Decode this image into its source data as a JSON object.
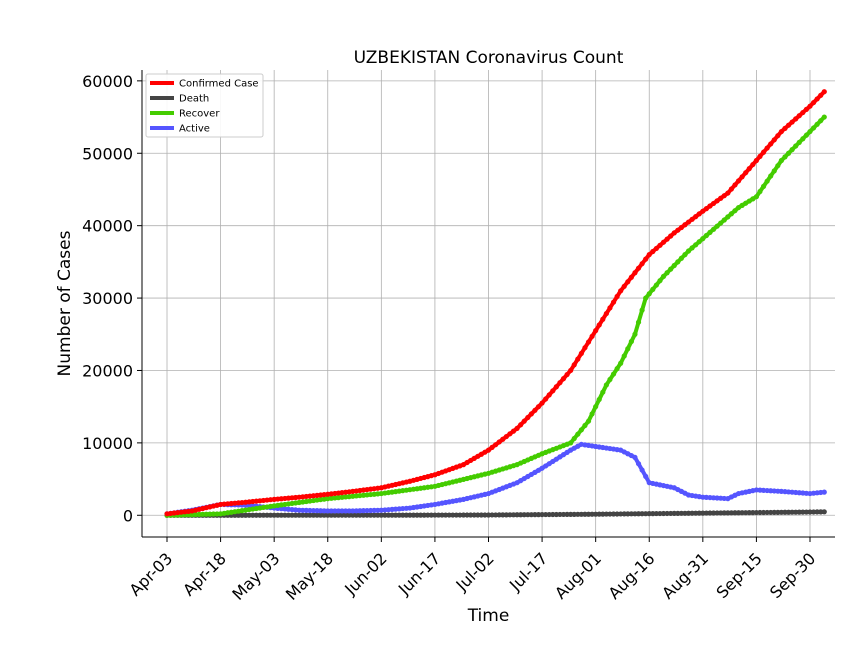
{
  "chart_data": {
    "type": "line",
    "title": "UZBEKISTAN Coronavirus Count",
    "xlabel": "Time",
    "ylabel": "Number of Cases",
    "ylim": [
      -3000,
      61500
    ],
    "yticks": [
      0,
      10000,
      20000,
      30000,
      40000,
      50000,
      60000
    ],
    "ytick_labels": [
      "0",
      "10000",
      "20000",
      "30000",
      "40000",
      "50000",
      "60000"
    ],
    "xlim_dates": [
      "2020-03-27",
      "2020-10-07"
    ],
    "xticks": [
      "2020-04-03",
      "2020-04-18",
      "2020-05-03",
      "2020-05-18",
      "2020-06-02",
      "2020-06-17",
      "2020-07-02",
      "2020-07-17",
      "2020-08-01",
      "2020-08-16",
      "2020-08-31",
      "2020-09-15",
      "2020-09-30"
    ],
    "xtick_labels": [
      "Apr-03",
      "Apr-18",
      "May-03",
      "May-18",
      "Jun-02",
      "Jun-17",
      "Jul-02",
      "Jul-17",
      "Aug-01",
      "Aug-16",
      "Aug-31",
      "Sep-15",
      "Sep-30"
    ],
    "grid": true,
    "legend_position": "top-left",
    "series": [
      {
        "name": "Confirmed Case",
        "color": "#ff0000",
        "points": [
          [
            "2020-04-03",
            200
          ],
          [
            "2020-04-10",
            600
          ],
          [
            "2020-04-18",
            1500
          ],
          [
            "2020-04-25",
            1800
          ],
          [
            "2020-05-03",
            2200
          ],
          [
            "2020-05-10",
            2500
          ],
          [
            "2020-05-18",
            2900
          ],
          [
            "2020-05-25",
            3300
          ],
          [
            "2020-06-02",
            3800
          ],
          [
            "2020-06-10",
            4700
          ],
          [
            "2020-06-17",
            5600
          ],
          [
            "2020-06-25",
            7000
          ],
          [
            "2020-07-02",
            9000
          ],
          [
            "2020-07-10",
            12000
          ],
          [
            "2020-07-17",
            15500
          ],
          [
            "2020-07-25",
            20000
          ],
          [
            "2020-08-01",
            25500
          ],
          [
            "2020-08-08",
            31000
          ],
          [
            "2020-08-16",
            36000
          ],
          [
            "2020-08-23",
            39000
          ],
          [
            "2020-08-31",
            42000
          ],
          [
            "2020-09-07",
            44500
          ],
          [
            "2020-09-15",
            49000
          ],
          [
            "2020-09-22",
            53000
          ],
          [
            "2020-09-30",
            56500
          ],
          [
            "2020-10-04",
            58500
          ]
        ]
      },
      {
        "name": "Death",
        "color": "#444444",
        "points": [
          [
            "2020-04-03",
            0
          ],
          [
            "2020-05-03",
            10
          ],
          [
            "2020-06-02",
            15
          ],
          [
            "2020-07-02",
            40
          ],
          [
            "2020-08-01",
            150
          ],
          [
            "2020-08-31",
            300
          ],
          [
            "2020-09-30",
            450
          ],
          [
            "2020-10-04",
            480
          ]
        ]
      },
      {
        "name": "Recover",
        "color": "#44cc00",
        "points": [
          [
            "2020-04-03",
            0
          ],
          [
            "2020-04-18",
            200
          ],
          [
            "2020-05-03",
            1300
          ],
          [
            "2020-05-18",
            2300
          ],
          [
            "2020-06-02",
            3000
          ],
          [
            "2020-06-17",
            4000
          ],
          [
            "2020-07-02",
            5800
          ],
          [
            "2020-07-10",
            7000
          ],
          [
            "2020-07-17",
            8500
          ],
          [
            "2020-07-25",
            10000
          ],
          [
            "2020-07-30",
            13000
          ],
          [
            "2020-08-04",
            18000
          ],
          [
            "2020-08-08",
            21000
          ],
          [
            "2020-08-12",
            25000
          ],
          [
            "2020-08-15",
            30000
          ],
          [
            "2020-08-20",
            33000
          ],
          [
            "2020-08-27",
            36500
          ],
          [
            "2020-09-03",
            39500
          ],
          [
            "2020-09-10",
            42500
          ],
          [
            "2020-09-15",
            44000
          ],
          [
            "2020-09-22",
            49000
          ],
          [
            "2020-09-30",
            53000
          ],
          [
            "2020-10-04",
            55000
          ]
        ]
      },
      {
        "name": "Active",
        "color": "#5555ff",
        "points": [
          [
            "2020-04-03",
            200
          ],
          [
            "2020-04-10",
            700
          ],
          [
            "2020-04-18",
            1500
          ],
          [
            "2020-04-25",
            1400
          ],
          [
            "2020-05-03",
            1000
          ],
          [
            "2020-05-10",
            700
          ],
          [
            "2020-05-18",
            600
          ],
          [
            "2020-05-25",
            600
          ],
          [
            "2020-06-02",
            700
          ],
          [
            "2020-06-10",
            1000
          ],
          [
            "2020-06-17",
            1500
          ],
          [
            "2020-06-25",
            2200
          ],
          [
            "2020-07-02",
            3000
          ],
          [
            "2020-07-10",
            4500
          ],
          [
            "2020-07-17",
            6500
          ],
          [
            "2020-07-25",
            9000
          ],
          [
            "2020-07-28",
            9800
          ],
          [
            "2020-08-01",
            9500
          ],
          [
            "2020-08-08",
            9000
          ],
          [
            "2020-08-12",
            8000
          ],
          [
            "2020-08-16",
            4500
          ],
          [
            "2020-08-23",
            3800
          ],
          [
            "2020-08-27",
            2800
          ],
          [
            "2020-08-31",
            2500
          ],
          [
            "2020-09-07",
            2300
          ],
          [
            "2020-09-10",
            3000
          ],
          [
            "2020-09-15",
            3500
          ],
          [
            "2020-09-22",
            3300
          ],
          [
            "2020-09-30",
            3000
          ],
          [
            "2020-10-04",
            3200
          ]
        ]
      }
    ]
  }
}
